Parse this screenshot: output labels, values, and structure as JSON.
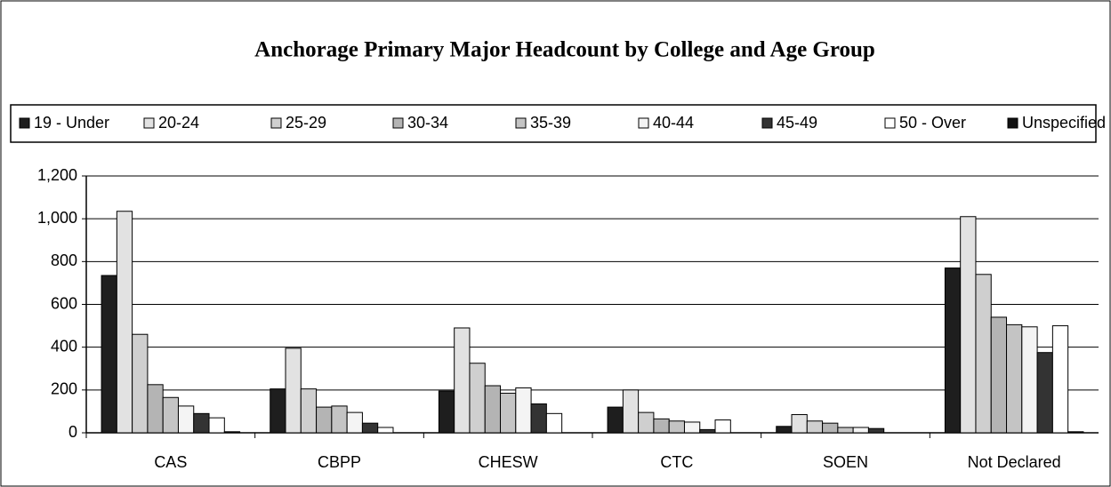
{
  "chart_data": {
    "type": "bar",
    "title": "Anchorage Primary Major Headcount by College and Age Group",
    "categories": [
      "CAS",
      "CBPP",
      "CHESW",
      "CTC",
      "SOEN",
      "Not Declared"
    ],
    "series": [
      {
        "name": "19 - Under",
        "color": "#1e1e1e",
        "values": [
          735,
          205,
          195,
          120,
          30,
          770
        ]
      },
      {
        "name": "20-24",
        "color": "#e2e2e2",
        "values": [
          1035,
          395,
          490,
          200,
          85,
          1010
        ]
      },
      {
        "name": "25-29",
        "color": "#cfcfcf",
        "values": [
          460,
          205,
          325,
          95,
          55,
          740
        ]
      },
      {
        "name": "30-34",
        "color": "#b4b4b4",
        "values": [
          225,
          120,
          220,
          65,
          45,
          540
        ]
      },
      {
        "name": "35-39",
        "color": "#c4c4c4",
        "values": [
          165,
          125,
          185,
          55,
          25,
          505
        ]
      },
      {
        "name": "40-44",
        "color": "#f4f4f4",
        "values": [
          125,
          95,
          210,
          50,
          25,
          495
        ]
      },
      {
        "name": "45-49",
        "color": "#333333",
        "values": [
          90,
          45,
          135,
          15,
          20,
          375
        ]
      },
      {
        "name": "50 - Over",
        "color": "#ffffff",
        "values": [
          70,
          25,
          90,
          60,
          0,
          500
        ]
      },
      {
        "name": "Unspecified",
        "color": "#111111",
        "values": [
          5,
          0,
          0,
          0,
          0,
          5
        ]
      }
    ],
    "ylim": [
      0,
      1200
    ],
    "yticks": [
      0,
      200,
      400,
      600,
      800,
      {
        "value": 1000,
        "label": "1,000"
      },
      {
        "value": 1200,
        "label": "1,200"
      }
    ],
    "grid": true
  }
}
